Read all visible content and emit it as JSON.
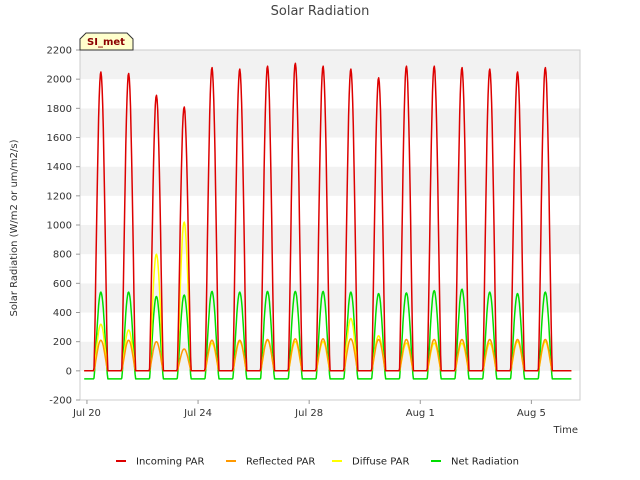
{
  "chart_data": {
    "type": "line",
    "title": "Solar Radiation",
    "xlabel": "Time",
    "ylabel": "Solar Radiation (W/m2 or um/m2/s)",
    "badge": "SI_met",
    "x_start": "2023-07-20",
    "x_end": "2023-08-07",
    "x_ticks": [
      {
        "label": "Jul 20",
        "day": 0
      },
      {
        "label": "Jul 24",
        "day": 4
      },
      {
        "label": "Jul 28",
        "day": 8
      },
      {
        "label": "Aug 1",
        "day": 12
      },
      {
        "label": "Aug 5",
        "day": 16
      }
    ],
    "ylim": [
      -200,
      2200
    ],
    "y_ticks": [
      -200,
      0,
      200,
      400,
      600,
      800,
      1000,
      1200,
      1400,
      1600,
      1800,
      2000,
      2200
    ],
    "grid": "horizontal alternating bands",
    "legend_position": "bottom",
    "series": [
      {
        "name": "Incoming PAR",
        "color": "#dd0000",
        "daily_peaks": [
          2050,
          2040,
          1890,
          1810,
          2080,
          2070,
          2090,
          2110,
          2090,
          2070,
          2010,
          2090,
          2090,
          2080,
          2070,
          2050,
          2080
        ]
      },
      {
        "name": "Reflected PAR",
        "color": "#ff9900",
        "daily_peaks": [
          210,
          210,
          200,
          150,
          210,
          210,
          215,
          220,
          220,
          220,
          215,
          215,
          215,
          215,
          215,
          215,
          215
        ]
      },
      {
        "name": "Diffuse PAR",
        "color": "#ffff00",
        "daily_peaks": [
          320,
          280,
          800,
          1020,
          190,
          200,
          210,
          200,
          200,
          360,
          240,
          190,
          190,
          190,
          190,
          200,
          200
        ]
      },
      {
        "name": "Net Radiation",
        "color": "#00dd00",
        "daily_peaks": [
          540,
          540,
          510,
          520,
          545,
          540,
          545,
          545,
          545,
          540,
          530,
          535,
          550,
          560,
          540,
          530,
          540
        ],
        "night_value": -55
      }
    ]
  }
}
